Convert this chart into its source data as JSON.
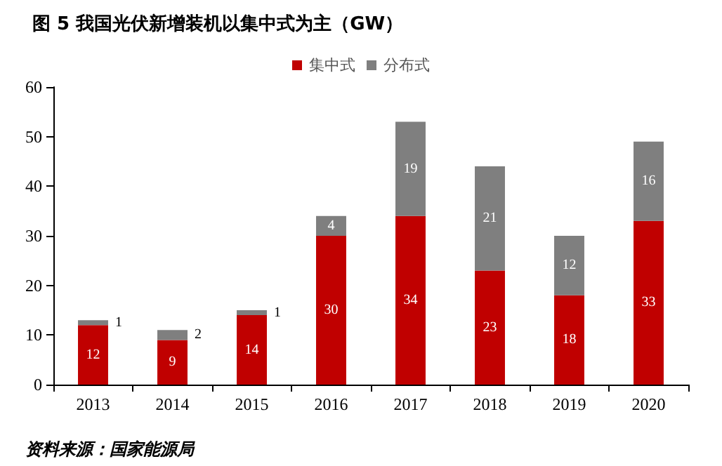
{
  "chart_data": {
    "type": "bar",
    "title": "图 5 我国光伏新增装机以集中式为主（GW）",
    "categories": [
      "2013",
      "2014",
      "2015",
      "2016",
      "2017",
      "2018",
      "2019",
      "2020"
    ],
    "series": [
      {
        "name": "集中式",
        "color": "#c00000",
        "values": [
          12,
          9,
          14,
          30,
          34,
          23,
          18,
          33
        ]
      },
      {
        "name": "分布式",
        "color": "#7f7f7f",
        "values": [
          1,
          2,
          1,
          4,
          19,
          21,
          12,
          16
        ]
      }
    ],
    "stacked": true,
    "data_labels": true,
    "ylim": [
      0,
      60
    ],
    "yticks": [
      0,
      10,
      20,
      30,
      40,
      50,
      60
    ],
    "grid": false,
    "legend": "top",
    "annotations": [
      "资料来源：国家能源局"
    ]
  }
}
